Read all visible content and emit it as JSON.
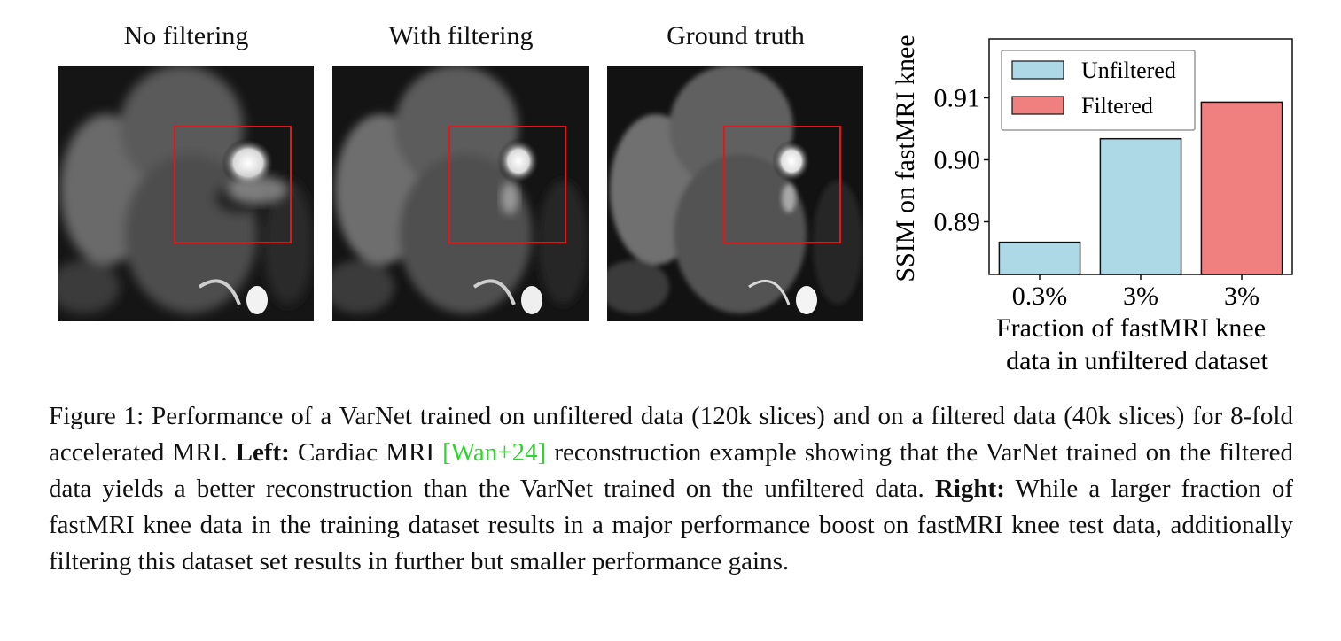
{
  "panels": [
    {
      "title": "No filtering"
    },
    {
      "title": "With filtering"
    },
    {
      "title": "Ground truth"
    }
  ],
  "chart_data": {
    "type": "bar",
    "categories": [
      "0.3%",
      "3%",
      "3%"
    ],
    "series": [
      {
        "name": "Unfiltered",
        "color": "#add8e6",
        "values": [
          0.8867,
          0.9034,
          null
        ]
      },
      {
        "name": "Filtered",
        "color": "#f08080",
        "values": [
          null,
          null,
          0.9093
        ]
      }
    ],
    "bar_colors": [
      "#add8e6",
      "#add8e6",
      "#f08080"
    ],
    "ylabel": "SSIM on fastMRI knee",
    "xlabel_line1": "Fraction of fastMRI knee",
    "xlabel_line2": "data in unfiltered dataset",
    "yticks": [
      "0.89",
      "0.90",
      "0.91"
    ],
    "ylim": [
      0.8815,
      0.9195
    ],
    "legend_position": "upper-left",
    "grid": false
  },
  "caption": {
    "p1": "Figure 1: Performance of a VarNet trained on unfiltered data (120k slices) and on a filtered data (40k slices) for 8-fold accelerated MRI. ",
    "left_label": "Left:",
    "p2": " Cardiac MRI ",
    "citation": "[Wan+24]",
    "p3": " reconstruction example showing that the VarNet trained on the filtered data yields a better reconstruction than the VarNet trained on the unfiltered data. ",
    "right_label": "Right:",
    "p4": " While a larger fraction of fastMRI knee data in the training dataset results in a major performance boost on fastMRI knee test data, additionally filtering this dataset set results in further but smaller performance gains."
  }
}
